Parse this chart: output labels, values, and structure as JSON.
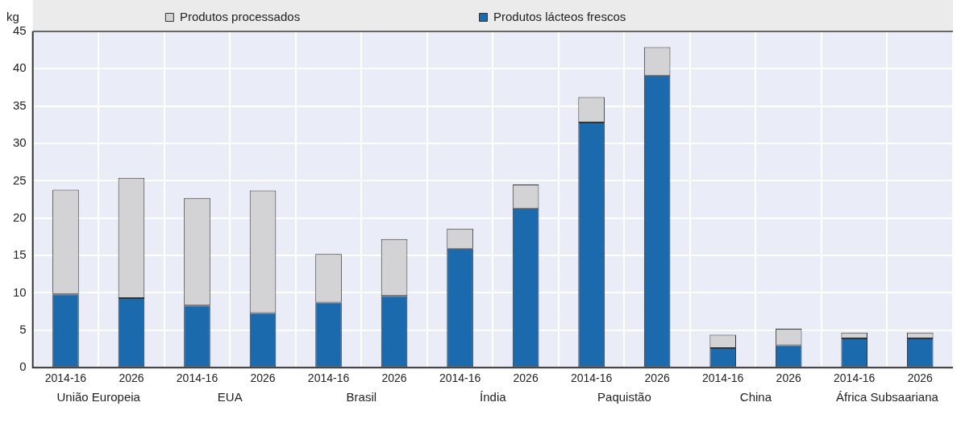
{
  "chart_data": {
    "type": "bar",
    "stacked": true,
    "ylabel": "kg",
    "categories": [
      "2014-16",
      "2026",
      "2014-16",
      "2026",
      "2014-16",
      "2026",
      "2014-16",
      "2026",
      "2014-16",
      "2026",
      "2014-16",
      "2026",
      "2014-16",
      "2026"
    ],
    "series": [
      {
        "name": "Produtos lácteos frescos",
        "color": "#1a6aad",
        "values": [
          9.8,
          9.3,
          8.3,
          7.3,
          8.7,
          9.6,
          15.9,
          21.3,
          32.8,
          39.1,
          2.6,
          3.0,
          3.9,
          3.9
        ]
      },
      {
        "name": "Produtos processados",
        "color": "#d3d3d5",
        "values": [
          14.0,
          16.1,
          14.4,
          16.4,
          6.5,
          7.6,
          2.7,
          3.2,
          3.4,
          3.8,
          1.8,
          2.2,
          0.8,
          0.8
        ]
      }
    ],
    "annotations": [
      "União Europeia",
      "EUA",
      "Brasil",
      "Índia",
      "Paquistão",
      "China",
      "África Subsaariana"
    ],
    "ylim": [
      0,
      45
    ],
    "yticks": [
      0,
      5,
      10,
      15,
      20,
      25,
      30,
      35,
      40,
      45
    ],
    "grid": true,
    "legend": "top"
  }
}
